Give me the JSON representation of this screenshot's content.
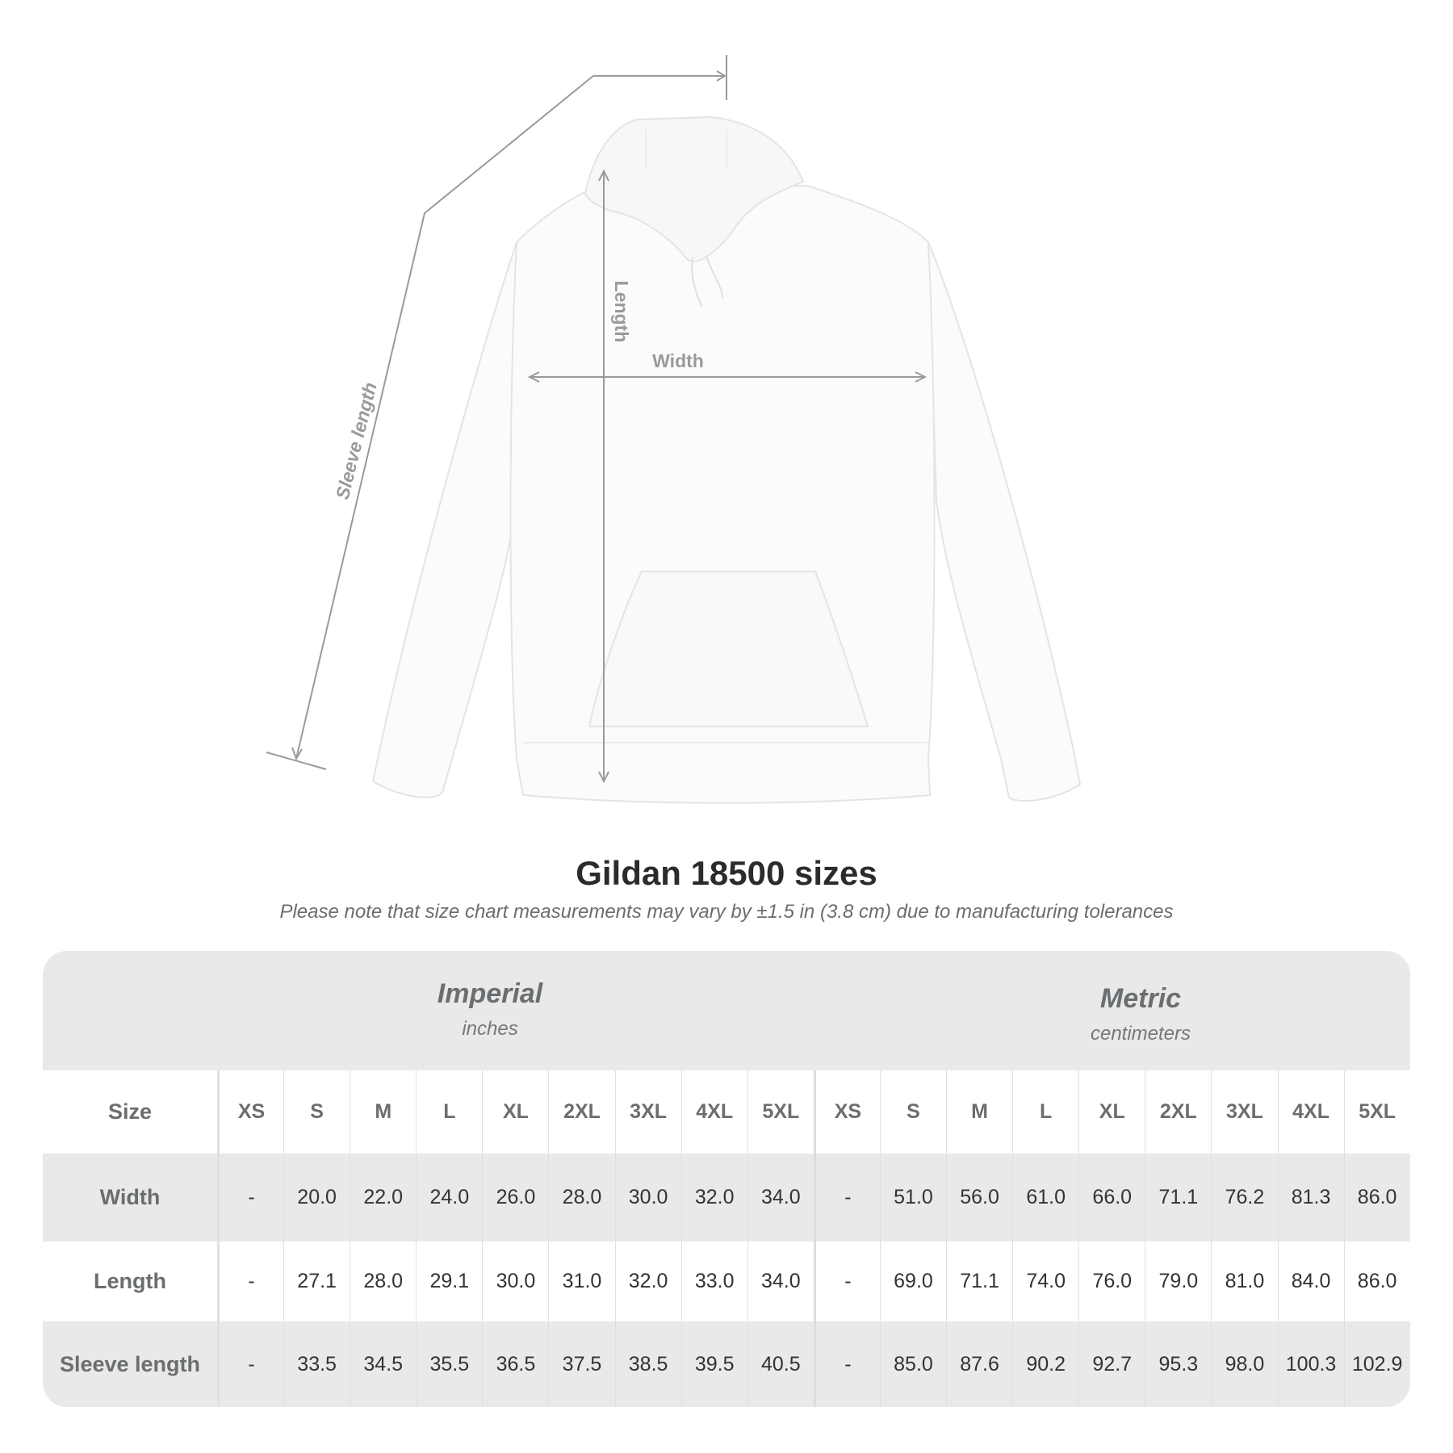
{
  "diagram": {
    "labels": {
      "sleeve": "Sleeve length",
      "length": "Length",
      "width": "Width"
    },
    "line_color": "#9a9a9a"
  },
  "title": "Gildan 18500 sizes",
  "note": "Please note that size chart measurements may vary by ±1.5 in (3.8 cm) due to manufacturing tolerances",
  "table": {
    "imperial": {
      "name": "Imperial",
      "unit": "inches"
    },
    "metric": {
      "name": "Metric",
      "unit": "centimeters"
    },
    "size_label": "Size",
    "sizes": [
      "XS",
      "S",
      "M",
      "L",
      "XL",
      "2XL",
      "3XL",
      "4XL",
      "5XL"
    ],
    "rows": [
      {
        "label": "Width",
        "imperial": [
          "-",
          "20.0",
          "22.0",
          "24.0",
          "26.0",
          "28.0",
          "30.0",
          "32.0",
          "34.0"
        ],
        "metric": [
          "-",
          "51.0",
          "56.0",
          "61.0",
          "66.0",
          "71.1",
          "76.2",
          "81.3",
          "86.0"
        ]
      },
      {
        "label": "Length",
        "imperial": [
          "-",
          "27.1",
          "28.0",
          "29.1",
          "30.0",
          "31.0",
          "32.0",
          "33.0",
          "34.0"
        ],
        "metric": [
          "-",
          "69.0",
          "71.1",
          "74.0",
          "76.0",
          "79.0",
          "81.0",
          "84.0",
          "86.0"
        ]
      },
      {
        "label": "Sleeve length",
        "imperial": [
          "-",
          "33.5",
          "34.5",
          "35.5",
          "36.5",
          "37.5",
          "38.5",
          "39.5",
          "40.5"
        ],
        "metric": [
          "-",
          "85.0",
          "87.6",
          "90.2",
          "92.7",
          "95.3",
          "98.0",
          "100.3",
          "102.9"
        ]
      }
    ],
    "colors": {
      "band": "#e9e9e9",
      "header_text": "#6b6e70",
      "value_text": "#333333"
    }
  }
}
